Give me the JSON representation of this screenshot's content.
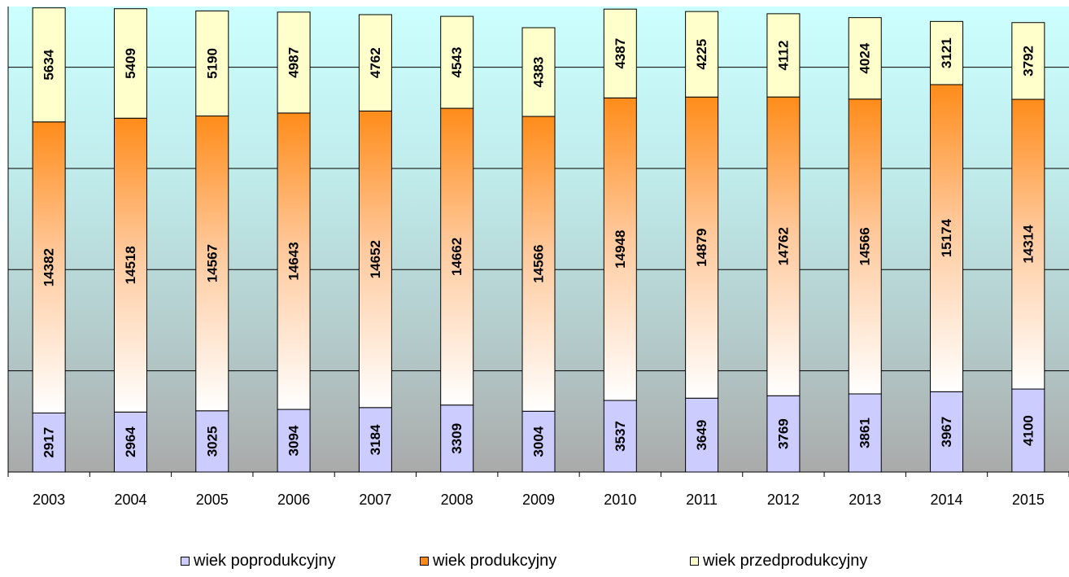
{
  "chart_data": {
    "type": "bar",
    "stacked": true,
    "orientation": "vertical",
    "categories": [
      "2003",
      "2004",
      "2005",
      "2006",
      "2007",
      "2008",
      "2009",
      "2010",
      "2011",
      "2012",
      "2013",
      "2014",
      "2015"
    ],
    "series": [
      {
        "name": "wiek poprodukcyjny",
        "values": [
          2917,
          2964,
          3025,
          3094,
          3184,
          3309,
          3004,
          3537,
          3649,
          3769,
          3861,
          3967,
          4100
        ],
        "color": "#ccccff"
      },
      {
        "name": "wiek produkcyjny",
        "values": [
          14382,
          14518,
          14567,
          14643,
          14652,
          14662,
          14566,
          14948,
          14879,
          14762,
          14566,
          15174,
          14314
        ],
        "color": "#ff8c1a"
      },
      {
        "name": "wiek przedprodukcyjny",
        "values": [
          5634,
          5409,
          5190,
          4987,
          4762,
          4543,
          4383,
          4387,
          4225,
          4112,
          4024,
          3121,
          3792
        ],
        "color": "#ffffcc"
      }
    ],
    "data_labels": true,
    "ylim": [
      0,
      23000
    ],
    "grid": true,
    "legend_position": "bottom"
  }
}
